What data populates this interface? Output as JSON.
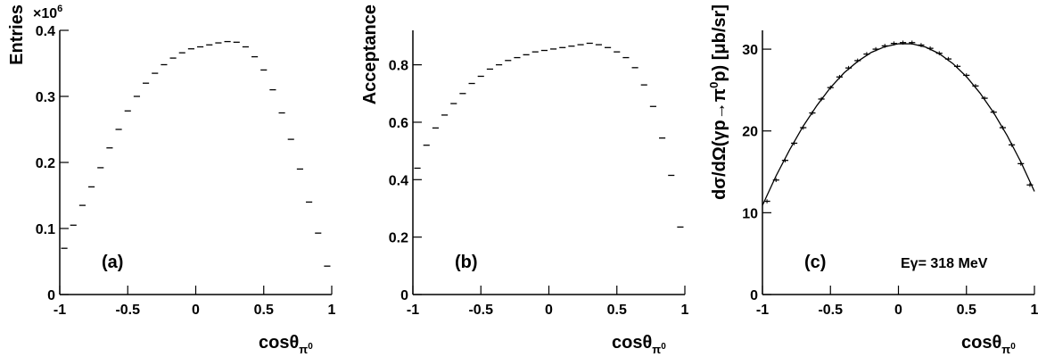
{
  "chart_data": [
    {
      "type": "histogram",
      "ylabel": "Entries",
      "y_multiplier": "×10",
      "y_multiplier_exp": "6",
      "xlabel": "cosθ",
      "xlabel_sub": "π",
      "xlabel_sub_sup": "0",
      "annotation": "(a)",
      "xlim": [
        -1,
        1
      ],
      "ylim": [
        0,
        0.4
      ],
      "xticks": [
        -1,
        -0.5,
        0,
        0.5,
        1
      ],
      "yticks": [
        0,
        0.1,
        0.2,
        0.3,
        0.4
      ],
      "color": "#000000",
      "bins": [
        -1,
        -0.9333,
        -0.8667,
        -0.8,
        -0.7333,
        -0.6667,
        -0.6,
        -0.5333,
        -0.4667,
        -0.4,
        -0.3333,
        -0.2667,
        -0.2,
        -0.1333,
        -0.0667,
        0,
        0.0667,
        0.1333,
        0.2,
        0.2667,
        0.3333,
        0.4,
        0.4667,
        0.5333,
        0.6,
        0.6667,
        0.7333,
        0.8,
        0.8667,
        0.9333,
        1
      ],
      "values": [
        0.07,
        0.105,
        0.135,
        0.163,
        0.192,
        0.222,
        0.25,
        0.278,
        0.3,
        0.32,
        0.335,
        0.348,
        0.358,
        0.366,
        0.372,
        0.375,
        0.378,
        0.381,
        0.383,
        0.382,
        0.375,
        0.36,
        0.34,
        0.31,
        0.275,
        0.235,
        0.19,
        0.14,
        0.093,
        0.043
      ]
    },
    {
      "type": "histogram",
      "ylabel": "Acceptance",
      "xlabel": "cosθ",
      "xlabel_sub": "π",
      "xlabel_sub_sup": "0",
      "annotation": "(b)",
      "xlim": [
        -1,
        1
      ],
      "ylim": [
        0,
        0.92
      ],
      "xticks": [
        -1,
        -0.5,
        0,
        0.5,
        1
      ],
      "yticks": [
        0,
        0.2,
        0.4,
        0.6,
        0.8
      ],
      "color": "#000000",
      "bins": [
        -1,
        -0.9333,
        -0.8667,
        -0.8,
        -0.7333,
        -0.6667,
        -0.6,
        -0.5333,
        -0.4667,
        -0.4,
        -0.3333,
        -0.2667,
        -0.2,
        -0.1333,
        -0.0667,
        0,
        0.0667,
        0.1333,
        0.2,
        0.2667,
        0.3333,
        0.4,
        0.4667,
        0.5333,
        0.6,
        0.6667,
        0.7333,
        0.8,
        0.8667,
        0.9333,
        1
      ],
      "values": [
        0.44,
        0.52,
        0.58,
        0.625,
        0.665,
        0.7,
        0.735,
        0.76,
        0.785,
        0.8,
        0.815,
        0.825,
        0.835,
        0.845,
        0.85,
        0.855,
        0.86,
        0.865,
        0.87,
        0.875,
        0.87,
        0.86,
        0.845,
        0.825,
        0.79,
        0.73,
        0.655,
        0.545,
        0.415,
        0.235
      ]
    },
    {
      "type": "histogram",
      "ylabel": "dσ/dΩ(γp→π",
      "ylabel_sup": "0",
      "ylabel_end": "p) [μb/sr]",
      "xlabel": "cosθ",
      "xlabel_sub": "π",
      "xlabel_sub_sup": "0",
      "annotation": "(c)",
      "annotation2": "Eγ= 318 MeV",
      "xlim": [
        -1,
        1
      ],
      "ylim": [
        0,
        32.3
      ],
      "xticks": [
        -1,
        -0.5,
        0,
        0.5,
        1
      ],
      "yticks": [
        0,
        10,
        20,
        30
      ],
      "color": "#000000",
      "bins": [
        -1,
        -0.9333,
        -0.8667,
        -0.8,
        -0.7333,
        -0.6667,
        -0.6,
        -0.5333,
        -0.4667,
        -0.4,
        -0.3333,
        -0.2667,
        -0.2,
        -0.1333,
        -0.0667,
        0,
        0.0667,
        0.1333,
        0.2,
        0.2667,
        0.3333,
        0.4,
        0.4667,
        0.5333,
        0.6,
        0.6667,
        0.7333,
        0.8,
        0.8667,
        0.9333,
        1
      ],
      "values": [
        11.4,
        14.0,
        16.4,
        18.5,
        20.4,
        22.2,
        23.9,
        25.3,
        26.6,
        27.7,
        28.6,
        29.4,
        30.0,
        30.4,
        30.7,
        30.8,
        30.8,
        30.5,
        30.1,
        29.5,
        28.8,
        27.9,
        26.8,
        25.5,
        24.0,
        22.3,
        20.4,
        18.3,
        16.0,
        13.4
      ],
      "errors": [
        0.25,
        0.25,
        0.25,
        0.25,
        0.25,
        0.25,
        0.25,
        0.25,
        0.25,
        0.25,
        0.25,
        0.25,
        0.25,
        0.25,
        0.25,
        0.25,
        0.25,
        0.25,
        0.25,
        0.25,
        0.25,
        0.25,
        0.25,
        0.25,
        0.25,
        0.25,
        0.25,
        0.25,
        0.25,
        0.25
      ],
      "fit": {
        "x": [
          -1,
          -0.9,
          -0.8,
          -0.7,
          -0.6,
          -0.5,
          -0.4,
          -0.3,
          -0.2,
          -0.1,
          0,
          0.1,
          0.2,
          0.3,
          0.4,
          0.5,
          0.6,
          0.7,
          0.8,
          0.9,
          1
        ],
        "values": [
          10.9,
          14.5,
          17.7,
          20.6,
          23.1,
          25.3,
          27.1,
          28.5,
          29.6,
          30.3,
          30.66,
          30.65,
          30.25,
          29.45,
          28.24,
          26.64,
          24.63,
          22.23,
          19.42,
          16.21,
          12.6
        ]
      }
    }
  ]
}
